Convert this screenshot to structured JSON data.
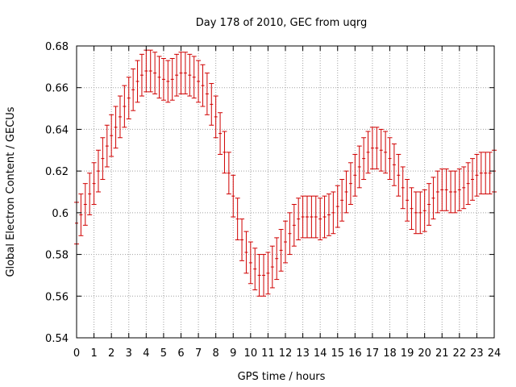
{
  "chart_data": {
    "type": "errorbar",
    "title": "Day 178 of 2010, GEC from uqrg",
    "xlabel": "GPS time / hours",
    "ylabel": "Global Electron Content / GECUs",
    "xlim": [
      0,
      24
    ],
    "ylim": [
      0.54,
      0.68
    ],
    "grid": true,
    "color": "#d00000",
    "x_ticks": [
      "0",
      "1",
      "2",
      "3",
      "4",
      "5",
      "6",
      "7",
      "8",
      "9",
      "10",
      "11",
      "12",
      "13",
      "14",
      "15",
      "16",
      "17",
      "18",
      "19",
      "20",
      "21",
      "22",
      "23",
      "24"
    ],
    "y_ticks": [
      "0.54",
      "0.56",
      "0.58",
      "0.6",
      "0.62",
      "0.64",
      "0.66",
      "0.68"
    ],
    "error": 0.01,
    "x_step": 0.25,
    "values": [
      0.595,
      0.599,
      0.604,
      0.609,
      0.614,
      0.62,
      0.626,
      0.632,
      0.637,
      0.641,
      0.646,
      0.651,
      0.655,
      0.659,
      0.663,
      0.666,
      0.668,
      0.668,
      0.667,
      0.665,
      0.664,
      0.663,
      0.664,
      0.666,
      0.667,
      0.667,
      0.666,
      0.665,
      0.663,
      0.661,
      0.657,
      0.652,
      0.646,
      0.638,
      0.629,
      0.619,
      0.608,
      0.597,
      0.587,
      0.581,
      0.576,
      0.573,
      0.57,
      0.57,
      0.571,
      0.574,
      0.578,
      0.582,
      0.586,
      0.59,
      0.594,
      0.597,
      0.598,
      0.598,
      0.598,
      0.598,
      0.597,
      0.598,
      0.599,
      0.6,
      0.603,
      0.606,
      0.61,
      0.614,
      0.618,
      0.622,
      0.626,
      0.629,
      0.631,
      0.631,
      0.63,
      0.629,
      0.626,
      0.623,
      0.618,
      0.612,
      0.606,
      0.602,
      0.6,
      0.6,
      0.601,
      0.604,
      0.607,
      0.61,
      0.611,
      0.611,
      0.61,
      0.61,
      0.611,
      0.612,
      0.614,
      0.616,
      0.618,
      0.619,
      0.619,
      0.619,
      0.62
    ]
  }
}
